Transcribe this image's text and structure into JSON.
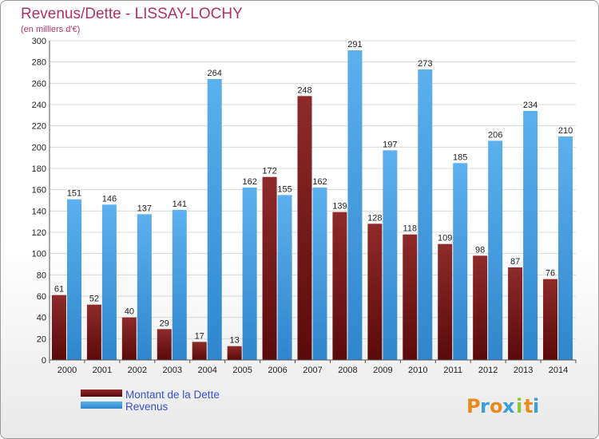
{
  "chart_data": {
    "type": "bar",
    "title": "Revenus/Dette - LISSAY-LOCHY",
    "subtitle": "(en milliers d'€)",
    "categories": [
      "2000",
      "2001",
      "2002",
      "2003",
      "2004",
      "2005",
      "2006",
      "2007",
      "2008",
      "2009",
      "2010",
      "2011",
      "2012",
      "2013",
      "2014"
    ],
    "series": [
      {
        "name": "Montant de la Dette",
        "color": "#7a1c1c",
        "values": [
          61,
          52,
          40,
          29,
          17,
          13,
          172,
          248,
          139,
          128,
          118,
          109,
          98,
          87,
          76
        ]
      },
      {
        "name": "Revenus",
        "color": "#4aa3e6",
        "values": [
          151,
          146,
          137,
          141,
          264,
          162,
          155,
          162,
          291,
          197,
          273,
          185,
          206,
          234,
          210
        ]
      }
    ],
    "ylim": [
      0,
      300
    ],
    "yticks": [
      0,
      20,
      40,
      60,
      80,
      100,
      120,
      140,
      160,
      180,
      200,
      220,
      240,
      260,
      280,
      300
    ],
    "grid": true,
    "legend": "bottom-left"
  },
  "logo": {
    "letters": [
      "P",
      "r",
      "o",
      "x",
      "i",
      "t",
      "i"
    ],
    "colors": [
      "#e88a1e",
      "#3aa0d8",
      "#e88a1e",
      "#3aa0d8",
      "#8cc63f",
      "#e88a1e",
      "#3aa0d8"
    ]
  }
}
